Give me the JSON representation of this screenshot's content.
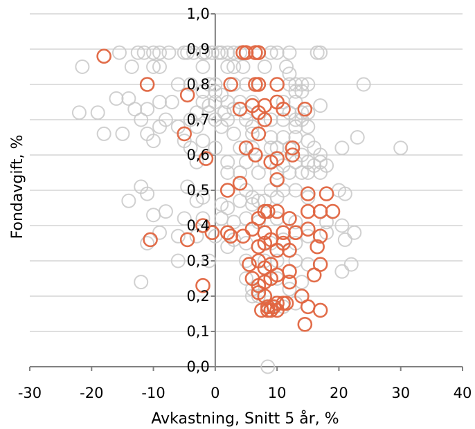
{
  "chart_data": {
    "type": "scatter",
    "title": "",
    "xlabel": "Avkastning, Snitt 5 år, %",
    "ylabel": "Fondavgift, %",
    "xlim": [
      -30,
      40
    ],
    "ylim": [
      0,
      1
    ],
    "x_ticks": [
      "-30",
      "-20",
      "-10",
      "0",
      "10",
      "20",
      "30",
      "40"
    ],
    "y_ticks": [
      "0,0",
      "0,1",
      "0,2",
      "0,3",
      "0,4",
      "0,5",
      "0,6",
      "0,7",
      "0,8",
      "0,9",
      "1,0"
    ],
    "grid": "horizontal",
    "legend": "none",
    "colors": {
      "other": "#c8c8c8",
      "highlight": "#e06540",
      "axis": "#808080",
      "grid": "#bfbfbf"
    },
    "series": [
      {
        "color": "#c8c8c8",
        "points": [
          [
            -21.5,
            0.85
          ],
          [
            -15.5,
            0.89
          ],
          [
            -12.5,
            0.89
          ],
          [
            -11.5,
            0.89
          ],
          [
            -10,
            0.89
          ],
          [
            -9,
            0.89
          ],
          [
            -7.5,
            0.89
          ],
          [
            -5,
            0.89
          ],
          [
            -4.5,
            0.89
          ],
          [
            -3.5,
            0.89
          ],
          [
            -2,
            0.89
          ],
          [
            -1.5,
            0.89
          ],
          [
            -0.5,
            0.89
          ],
          [
            0.5,
            0.89
          ],
          [
            1,
            0.89
          ],
          [
            2,
            0.89
          ],
          [
            3,
            0.89
          ],
          [
            4,
            0.89
          ],
          [
            7,
            0.89
          ],
          [
            9,
            0.89
          ],
          [
            10,
            0.89
          ],
          [
            12,
            0.89
          ],
          [
            16.5,
            0.89
          ],
          [
            17,
            0.89
          ],
          [
            -13.5,
            0.85
          ],
          [
            -10,
            0.85
          ],
          [
            -9,
            0.85
          ],
          [
            -2,
            0.85
          ],
          [
            2,
            0.85
          ],
          [
            3,
            0.85
          ],
          [
            4.5,
            0.85
          ],
          [
            8,
            0.85
          ],
          [
            11.5,
            0.85
          ],
          [
            12,
            0.83
          ],
          [
            -11,
            0.8
          ],
          [
            -6,
            0.8
          ],
          [
            -4,
            0.8
          ],
          [
            -1,
            0.8
          ],
          [
            0,
            0.8
          ],
          [
            3,
            0.8
          ],
          [
            5,
            0.8
          ],
          [
            7,
            0.8
          ],
          [
            12,
            0.8
          ],
          [
            13,
            0.8
          ],
          [
            14,
            0.8
          ],
          [
            15,
            0.8
          ],
          [
            24,
            0.8
          ],
          [
            -2,
            0.78
          ],
          [
            0,
            0.78
          ],
          [
            1,
            0.77
          ],
          [
            13,
            0.78
          ],
          [
            14,
            0.78
          ],
          [
            -14,
            0.76
          ],
          [
            -9,
            0.75
          ],
          [
            -7,
            0.75
          ],
          [
            -2,
            0.75
          ],
          [
            -1,
            0.74
          ],
          [
            0,
            0.75
          ],
          [
            2,
            0.75
          ],
          [
            4,
            0.75
          ],
          [
            6,
            0.75
          ],
          [
            10,
            0.75
          ],
          [
            11,
            0.75
          ],
          [
            13,
            0.75
          ],
          [
            -22,
            0.72
          ],
          [
            -19,
            0.72
          ],
          [
            -13,
            0.73
          ],
          [
            -11,
            0.73
          ],
          [
            -3,
            0.72
          ],
          [
            -1,
            0.72
          ],
          [
            1.5,
            0.72
          ],
          [
            3,
            0.73
          ],
          [
            5,
            0.72
          ],
          [
            12,
            0.72
          ],
          [
            14,
            0.72
          ],
          [
            15,
            0.72
          ],
          [
            17,
            0.74
          ],
          [
            -12,
            0.7
          ],
          [
            -8,
            0.7
          ],
          [
            -4,
            0.7
          ],
          [
            0,
            0.7
          ],
          [
            2,
            0.7
          ],
          [
            5,
            0.7
          ],
          [
            9,
            0.7
          ],
          [
            11,
            0.7
          ],
          [
            13,
            0.7
          ],
          [
            14,
            0.7
          ],
          [
            -16,
            0.76
          ],
          [
            -9,
            0.68
          ],
          [
            -6,
            0.68
          ],
          [
            -3,
            0.68
          ],
          [
            1,
            0.68
          ],
          [
            6,
            0.68
          ],
          [
            13,
            0.68
          ],
          [
            15,
            0.68
          ],
          [
            -18,
            0.66
          ],
          [
            -15,
            0.66
          ],
          [
            -11,
            0.66
          ],
          [
            -10,
            0.64
          ],
          [
            -5,
            0.64
          ],
          [
            -2,
            0.64
          ],
          [
            3,
            0.66
          ],
          [
            6,
            0.66
          ],
          [
            9,
            0.65
          ],
          [
            11,
            0.65
          ],
          [
            13,
            0.65
          ],
          [
            15,
            0.64
          ],
          [
            23,
            0.65
          ],
          [
            -4,
            0.62
          ],
          [
            0,
            0.62
          ],
          [
            4,
            0.62
          ],
          [
            6,
            0.62
          ],
          [
            9,
            0.62
          ],
          [
            10,
            0.62
          ],
          [
            12,
            0.62
          ],
          [
            14,
            0.6
          ],
          [
            16,
            0.62
          ],
          [
            17,
            0.6
          ],
          [
            20.5,
            0.62
          ],
          [
            30,
            0.62
          ],
          [
            -3,
            0.58
          ],
          [
            2,
            0.58
          ],
          [
            5,
            0.58
          ],
          [
            8,
            0.58
          ],
          [
            11,
            0.57
          ],
          [
            13,
            0.58
          ],
          [
            15,
            0.58
          ],
          [
            16,
            0.57
          ],
          [
            17,
            0.58
          ],
          [
            18,
            0.57
          ],
          [
            2,
            0.55
          ],
          [
            4,
            0.55
          ],
          [
            7,
            0.55
          ],
          [
            10,
            0.55
          ],
          [
            12,
            0.55
          ],
          [
            14,
            0.55
          ],
          [
            15,
            0.55
          ],
          [
            17,
            0.55
          ],
          [
            -12,
            0.51
          ],
          [
            -4.5,
            0.51
          ],
          [
            2,
            0.5
          ],
          [
            5,
            0.5
          ],
          [
            6,
            0.48
          ],
          [
            7,
            0.47
          ],
          [
            9,
            0.5
          ],
          [
            11,
            0.5
          ],
          [
            13,
            0.5
          ],
          [
            15,
            0.48
          ],
          [
            20,
            0.5
          ],
          [
            21,
            0.49
          ],
          [
            -11,
            0.49
          ],
          [
            -14,
            0.47
          ],
          [
            -2,
            0.48
          ],
          [
            -3,
            0.47
          ],
          [
            1,
            0.46
          ],
          [
            2,
            0.45
          ],
          [
            4,
            0.47
          ],
          [
            6,
            0.46
          ],
          [
            8,
            0.47
          ],
          [
            10,
            0.48
          ],
          [
            -10,
            0.43
          ],
          [
            -8,
            0.44
          ],
          [
            -5,
            0.42
          ],
          [
            -2,
            0.42
          ],
          [
            1,
            0.42
          ],
          [
            3,
            0.41
          ],
          [
            5,
            0.42
          ],
          [
            7,
            0.41
          ],
          [
            10,
            0.42
          ],
          [
            13,
            0.41
          ],
          [
            18,
            0.41
          ],
          [
            20.5,
            0.4
          ],
          [
            -9,
            0.38
          ],
          [
            -6,
            0.37
          ],
          [
            -3,
            0.37
          ],
          [
            0,
            0.37
          ],
          [
            2,
            0.34
          ],
          [
            3,
            0.36
          ],
          [
            5,
            0.35
          ],
          [
            9,
            0.35
          ],
          [
            11,
            0.36
          ],
          [
            13,
            0.35
          ],
          [
            15,
            0.37
          ],
          [
            18,
            0.38
          ],
          [
            21,
            0.36
          ],
          [
            22.5,
            0.38
          ],
          [
            -11,
            0.35
          ],
          [
            -6,
            0.3
          ],
          [
            -1,
            0.3
          ],
          [
            5,
            0.3
          ],
          [
            8,
            0.3
          ],
          [
            10,
            0.3
          ],
          [
            13,
            0.3
          ],
          [
            15,
            0.29
          ],
          [
            22,
            0.29
          ],
          [
            20.5,
            0.27
          ],
          [
            -12,
            0.24
          ],
          [
            5,
            0.25
          ],
          [
            6,
            0.22
          ],
          [
            8,
            0.24
          ],
          [
            10,
            0.25
          ],
          [
            12,
            0.22
          ],
          [
            14,
            0.24
          ],
          [
            7,
            0.2
          ],
          [
            6,
            0.2
          ],
          [
            9,
            0.17
          ],
          [
            11,
            0.17
          ],
          [
            13,
            0.18
          ],
          [
            8.5,
            0.0
          ]
        ]
      },
      {
        "color": "#e06540",
        "points": [
          [
            -18,
            0.88
          ],
          [
            4.5,
            0.89
          ],
          [
            5,
            0.89
          ],
          [
            6.5,
            0.89
          ],
          [
            7,
            0.89
          ],
          [
            -11,
            0.8
          ],
          [
            2.5,
            0.8
          ],
          [
            6.5,
            0.8
          ],
          [
            7,
            0.8
          ],
          [
            10,
            0.8
          ],
          [
            -4.5,
            0.77
          ],
          [
            4,
            0.73
          ],
          [
            6,
            0.74
          ],
          [
            7,
            0.72
          ],
          [
            8,
            0.74
          ],
          [
            10,
            0.75
          ],
          [
            11,
            0.73
          ],
          [
            14.5,
            0.73
          ],
          [
            8,
            0.7
          ],
          [
            7,
            0.66
          ],
          [
            -5,
            0.66
          ],
          [
            5,
            0.62
          ],
          [
            6.5,
            0.6
          ],
          [
            9,
            0.58
          ],
          [
            10,
            0.59
          ],
          [
            12.5,
            0.62
          ],
          [
            12.5,
            0.6
          ],
          [
            -1.5,
            0.59
          ],
          [
            10,
            0.53
          ],
          [
            4,
            0.52
          ],
          [
            2,
            0.5
          ],
          [
            15,
            0.49
          ],
          [
            18,
            0.49
          ],
          [
            15,
            0.44
          ],
          [
            17,
            0.44
          ],
          [
            19,
            0.44
          ],
          [
            8,
            0.44
          ],
          [
            8.5,
            0.44
          ],
          [
            10,
            0.44
          ],
          [
            -2,
            0.4
          ],
          [
            -0.5,
            0.38
          ],
          [
            2,
            0.38
          ],
          [
            2.5,
            0.37
          ],
          [
            4.5,
            0.37
          ],
          [
            6,
            0.39
          ],
          [
            7,
            0.42
          ],
          [
            8,
            0.38
          ],
          [
            9,
            0.36
          ],
          [
            11,
            0.38
          ],
          [
            12,
            0.42
          ],
          [
            13,
            0.38
          ],
          [
            15,
            0.39
          ],
          [
            17,
            0.37
          ],
          [
            -10.5,
            0.36
          ],
          [
            -4.5,
            0.36
          ],
          [
            7,
            0.34
          ],
          [
            8,
            0.35
          ],
          [
            10,
            0.33
          ],
          [
            11,
            0.35
          ],
          [
            12,
            0.33
          ],
          [
            16.5,
            0.34
          ],
          [
            5.5,
            0.29
          ],
          [
            7,
            0.3
          ],
          [
            8,
            0.28
          ],
          [
            9,
            0.29
          ],
          [
            12,
            0.27
          ],
          [
            16,
            0.26
          ],
          [
            17,
            0.29
          ],
          [
            6,
            0.25
          ],
          [
            7,
            0.23
          ],
          [
            8,
            0.24
          ],
          [
            9,
            0.25
          ],
          [
            10,
            0.26
          ],
          [
            12,
            0.24
          ],
          [
            14,
            0.2
          ],
          [
            -2,
            0.23
          ],
          [
            7,
            0.21
          ],
          [
            8,
            0.2
          ],
          [
            8.5,
            0.17
          ],
          [
            9.5,
            0.17
          ],
          [
            10,
            0.18
          ],
          [
            11,
            0.18
          ],
          [
            11.5,
            0.18
          ],
          [
            7.5,
            0.16
          ],
          [
            8.5,
            0.16
          ],
          [
            9,
            0.16
          ],
          [
            10,
            0.16
          ],
          [
            15,
            0.17
          ],
          [
            17,
            0.16
          ],
          [
            14.5,
            0.12
          ]
        ]
      }
    ]
  }
}
